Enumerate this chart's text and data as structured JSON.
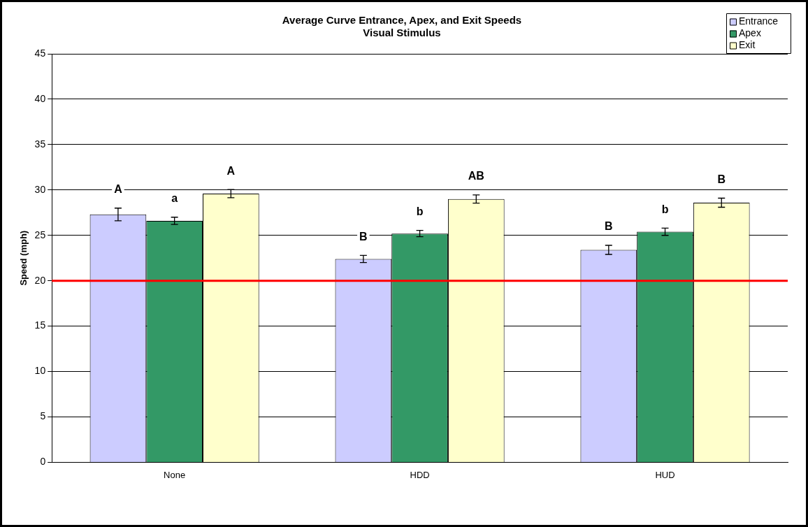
{
  "chart_data": {
    "type": "bar",
    "title": "Average Curve Entrance, Apex, and Exit Speeds",
    "subtitle": "Visual Stimulus",
    "ylabel": "Speed (mph)",
    "categories": [
      "None",
      "HDD",
      "HUD"
    ],
    "series": [
      {
        "name": "Entrance",
        "color": "#ccccff",
        "values": [
          27.3,
          22.4,
          23.4
        ],
        "errors": [
          0.7,
          0.4,
          0.5
        ],
        "value_labels": [
          "A",
          "B",
          "B"
        ]
      },
      {
        "name": "Apex",
        "color": "#339966",
        "values": [
          26.6,
          25.2,
          25.4
        ],
        "errors": [
          0.4,
          0.35,
          0.4
        ],
        "value_labels": [
          "a",
          "b",
          "b"
        ]
      },
      {
        "name": "Exit",
        "color": "#ffffcc",
        "values": [
          29.6,
          29.0,
          28.6
        ],
        "errors": [
          0.45,
          0.45,
          0.5
        ],
        "value_labels": [
          "A",
          "AB",
          "B"
        ]
      }
    ],
    "ylim": [
      0,
      45
    ],
    "yticks": [
      0,
      5,
      10,
      15,
      20,
      25,
      30,
      35,
      40,
      45
    ],
    "grid": "y",
    "legend": "top right",
    "ref_lines": [
      {
        "axis": "y",
        "value": 20,
        "color": "#ff0000"
      }
    ]
  }
}
